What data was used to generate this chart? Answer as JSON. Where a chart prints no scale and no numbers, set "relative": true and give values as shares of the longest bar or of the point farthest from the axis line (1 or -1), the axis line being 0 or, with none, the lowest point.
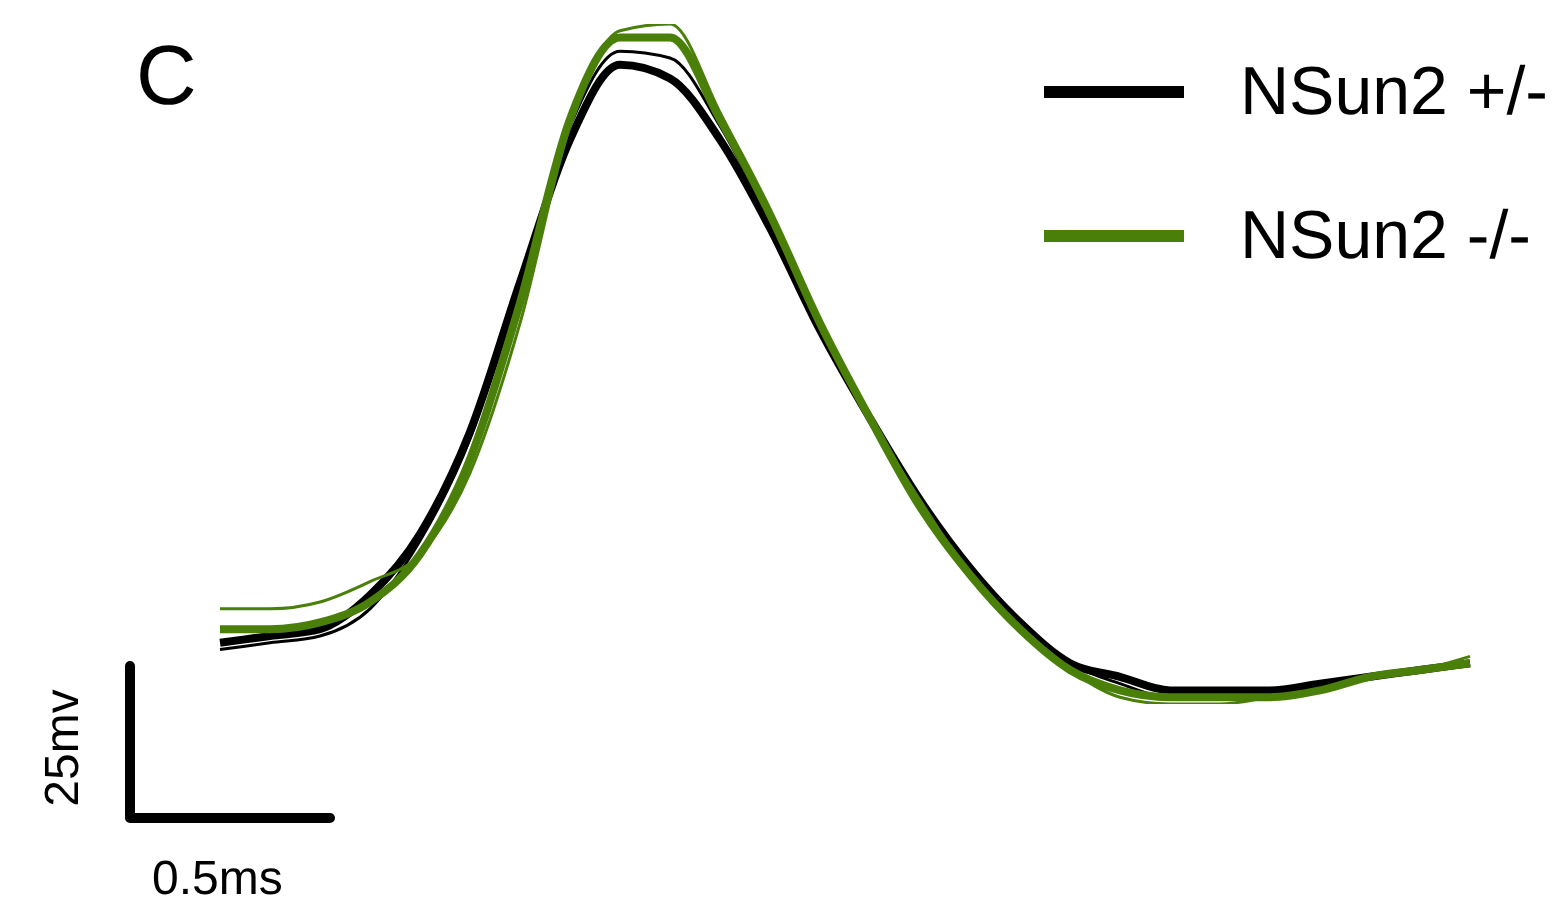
{
  "chart_data": {
    "type": "line",
    "title": "C",
    "relative": true,
    "legend": "top right",
    "marker": "none",
    "line_style": "solid",
    "grid": false,
    "tick_labels": false,
    "annotations": [
      "25mv",
      "0.5ms"
    ],
    "categories": [
      null,
      null,
      null,
      null,
      null,
      null,
      null,
      null,
      null,
      null,
      null,
      null,
      null,
      null,
      null,
      null,
      null,
      null,
      null,
      null,
      null,
      null,
      null,
      null,
      null,
      null
    ],
    "series": [
      {
        "name": "NSun2 +/-",
        "color": "#000000",
        "values": [
          0.09,
          0.1,
          0.11,
          0.16,
          0.25,
          0.4,
          0.62,
          0.83,
          0.94,
          0.92,
          0.83,
          0.7,
          0.55,
          0.42,
          0.3,
          0.2,
          0.12,
          0.06,
          0.04,
          0.02,
          0.02,
          0.02,
          0.03,
          0.04,
          0.05,
          0.06
        ]
      },
      {
        "color": "#000000",
        "values": [
          0.08,
          0.09,
          0.1,
          0.14,
          0.24,
          0.39,
          0.62,
          0.85,
          0.96,
          0.95,
          0.85,
          0.71,
          0.56,
          0.42,
          0.3,
          0.2,
          0.12,
          0.06,
          0.03,
          0.01,
          0.01,
          0.01,
          0.03,
          0.04,
          0.05,
          0.06
        ]
      },
      {
        "name": "NSun2 -/-",
        "color": "#4a7f0a",
        "values": [
          0.11,
          0.11,
          0.12,
          0.15,
          0.22,
          0.36,
          0.59,
          0.86,
          0.98,
          0.98,
          0.86,
          0.72,
          0.56,
          0.42,
          0.29,
          0.19,
          0.11,
          0.05,
          0.02,
          0.01,
          0.01,
          0.01,
          0.02,
          0.04,
          0.05,
          0.06
        ]
      },
      {
        "color": "#4a7f0a",
        "values": [
          0.14,
          0.14,
          0.15,
          0.18,
          0.22,
          0.34,
          0.56,
          0.85,
          0.99,
          1.0,
          0.87,
          0.72,
          0.56,
          0.42,
          0.3,
          0.19,
          0.11,
          0.05,
          0.01,
          0.0,
          0.0,
          0.01,
          0.02,
          0.04,
          0.05,
          0.07
        ]
      }
    ]
  }
}
